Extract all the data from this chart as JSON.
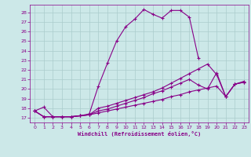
{
  "xlabel": "Windchill (Refroidissement éolien,°C)",
  "bg_color": "#cce8e8",
  "line_color": "#880088",
  "grid_color": "#aacccc",
  "xlim": [
    -0.5,
    23.5
  ],
  "ylim": [
    16.5,
    28.8
  ],
  "yticks": [
    17,
    18,
    19,
    20,
    21,
    22,
    23,
    24,
    25,
    26,
    27,
    28
  ],
  "xticks": [
    0,
    1,
    2,
    3,
    4,
    5,
    6,
    7,
    8,
    9,
    10,
    11,
    12,
    13,
    14,
    15,
    16,
    17,
    18,
    19,
    20,
    21,
    22,
    23
  ],
  "lines": [
    {
      "x": [
        0,
        1,
        2,
        3,
        4,
        5,
        6,
        7,
        8,
        9,
        10,
        11,
        12,
        13,
        14,
        15,
        16,
        17,
        18
      ],
      "y": [
        17.7,
        18.1,
        17.1,
        17.1,
        17.1,
        17.2,
        17.4,
        20.3,
        22.7,
        25.0,
        26.5,
        27.3,
        28.3,
        27.8,
        27.4,
        28.2,
        28.2,
        27.5,
        23.2
      ]
    },
    {
      "x": [
        0,
        1,
        2,
        3,
        4,
        5,
        6,
        7,
        8,
        9,
        10,
        11,
        12,
        13,
        14,
        15,
        16,
        17,
        18,
        19,
        20,
        21,
        22,
        23
      ],
      "y": [
        17.7,
        17.1,
        17.1,
        17.1,
        17.1,
        17.2,
        17.3,
        18.0,
        18.2,
        18.5,
        18.8,
        19.1,
        19.4,
        19.7,
        20.1,
        20.6,
        21.1,
        21.6,
        22.1,
        22.6,
        21.5,
        19.2,
        20.5,
        20.7
      ]
    },
    {
      "x": [
        0,
        1,
        2,
        3,
        4,
        5,
        6,
        7,
        8,
        9,
        10,
        11,
        12,
        13,
        14,
        15,
        16,
        17,
        18,
        19,
        20,
        21,
        22,
        23
      ],
      "y": [
        17.7,
        17.1,
        17.1,
        17.1,
        17.1,
        17.2,
        17.3,
        17.7,
        17.9,
        18.2,
        18.5,
        18.8,
        19.1,
        19.5,
        19.8,
        20.2,
        20.6,
        21.0,
        20.4,
        20.0,
        21.7,
        19.2,
        20.5,
        20.8
      ]
    },
    {
      "x": [
        0,
        1,
        2,
        3,
        4,
        5,
        6,
        7,
        8,
        9,
        10,
        11,
        12,
        13,
        14,
        15,
        16,
        17,
        18,
        19,
        20,
        21,
        22,
        23
      ],
      "y": [
        17.7,
        17.1,
        17.1,
        17.1,
        17.1,
        17.2,
        17.3,
        17.5,
        17.7,
        17.9,
        18.1,
        18.3,
        18.5,
        18.7,
        18.9,
        19.2,
        19.4,
        19.7,
        19.9,
        20.1,
        20.3,
        19.2,
        20.5,
        20.7
      ]
    }
  ]
}
